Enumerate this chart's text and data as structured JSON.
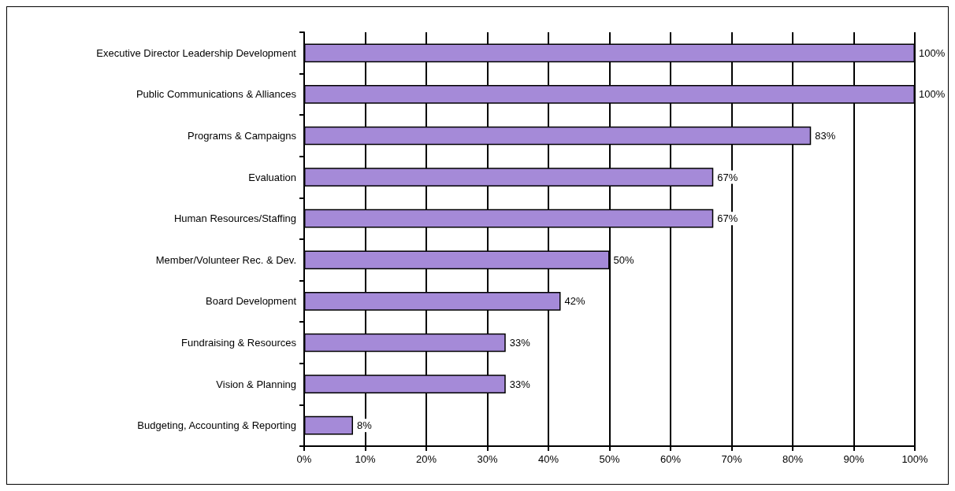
{
  "chart_data": {
    "type": "bar",
    "orientation": "horizontal",
    "categories": [
      "Executive Director Leadership Development",
      "Public Communications & Alliances",
      "Programs & Campaigns",
      "Evaluation",
      "Human Resources/Staffing",
      "Member/Volunteer Rec. & Dev.",
      "Board Development",
      "Fundraising & Resources",
      "Vision & Planning",
      "Budgeting, Accounting & Reporting"
    ],
    "values": [
      100,
      100,
      83,
      67,
      67,
      50,
      42,
      33,
      33,
      8
    ],
    "value_labels": [
      "100%",
      "100%",
      "83%",
      "67%",
      "67%",
      "50%",
      "42%",
      "33%",
      "33%",
      "8%"
    ],
    "color": "#a58ad8",
    "xlim": [
      0,
      100
    ],
    "xticks": [
      {
        "value": 0,
        "label": "0%"
      },
      {
        "value": 10,
        "label": "10%"
      },
      {
        "value": 20,
        "label": "20%"
      },
      {
        "value": 30,
        "label": "30%"
      },
      {
        "value": 40,
        "label": "40%"
      },
      {
        "value": 50,
        "label": "50%"
      },
      {
        "value": 60,
        "label": "60%"
      },
      {
        "value": 70,
        "label": "70%"
      },
      {
        "value": 80,
        "label": "80%"
      },
      {
        "value": 90,
        "label": "90%"
      },
      {
        "value": 100,
        "label": "100%"
      }
    ],
    "grid": "x"
  }
}
